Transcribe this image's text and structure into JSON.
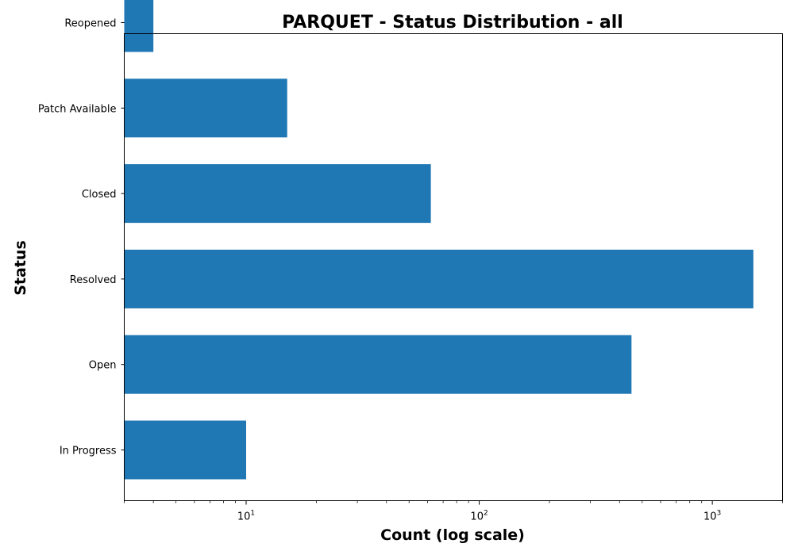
{
  "chart_data": {
    "type": "bar",
    "orientation": "horizontal",
    "title": "PARQUET - Status Distribution - all",
    "xlabel": "Count (log scale)",
    "ylabel": "Status",
    "x_scale": "log",
    "xlim": [
      3,
      2000
    ],
    "categories": [
      "In Progress",
      "Open",
      "Resolved",
      "Closed",
      "Patch Available",
      "Reopened"
    ],
    "values": [
      10,
      450,
      1500,
      62,
      15,
      4
    ],
    "x_ticks": [
      {
        "value": 10,
        "base": "10",
        "exp": "1"
      },
      {
        "value": 100,
        "base": "10",
        "exp": "2"
      },
      {
        "value": 1000,
        "base": "10",
        "exp": "3"
      }
    ],
    "bar_color": "#1f77b4",
    "grid": false,
    "legend": "none"
  }
}
